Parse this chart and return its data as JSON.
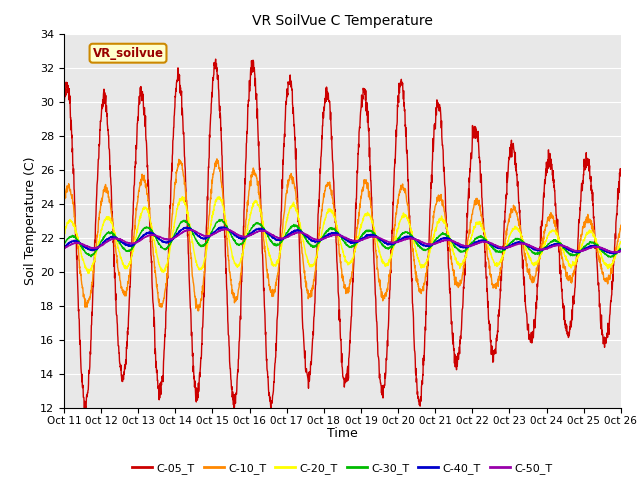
{
  "title": "VR SoilVue C Temperature",
  "xlabel": "Time",
  "ylabel": "Soil Temperature (C)",
  "ylim": [
    12,
    34
  ],
  "yticks": [
    12,
    14,
    16,
    18,
    20,
    22,
    24,
    26,
    28,
    30,
    32,
    34
  ],
  "xtick_labels": [
    "Oct 11",
    "0ct 12",
    "0ct 13",
    "0ct 14",
    "0ct 15",
    "0ct 16",
    "0ct 17",
    "0ct 18",
    "0ct 19",
    "0ct 20",
    "0ct 21",
    "0ct 22",
    "0ct 23",
    "0ct 24",
    "0ct 25",
    "0ct 26"
  ],
  "legend_labels": [
    "C-05_T",
    "C-10_T",
    "C-20_T",
    "C-30_T",
    "C-40_T",
    "C-50_T"
  ],
  "legend_colors": [
    "#cc0000",
    "#ff8800",
    "#ffff00",
    "#00bb00",
    "#0000cc",
    "#9900aa"
  ],
  "line_widths": [
    1.0,
    1.0,
    1.0,
    1.0,
    1.2,
    1.2
  ],
  "watermark_text": "VR_soilvue",
  "fig_bg": "#ffffff",
  "plot_bg": "#e8e8e8",
  "n_days": 15,
  "points_per_day": 144,
  "C05_amplitudes": [
    9.5,
    8.0,
    9.0,
    9.5,
    10.0,
    10.0,
    8.5,
    8.5,
    9.0,
    9.5,
    7.0,
    6.5,
    5.5,
    5.0,
    5.5
  ],
  "C10_amplitudes": [
    3.5,
    3.0,
    4.0,
    4.5,
    4.0,
    3.5,
    3.5,
    3.0,
    3.5,
    3.0,
    2.5,
    2.5,
    2.0,
    1.8,
    1.8
  ],
  "C20_amplitudes": [
    1.5,
    1.5,
    2.0,
    2.2,
    2.0,
    1.8,
    1.8,
    1.5,
    1.5,
    1.5,
    1.3,
    1.2,
    1.0,
    1.0,
    1.0
  ],
  "C30_amplitudes": [
    0.6,
    0.6,
    0.7,
    0.8,
    0.7,
    0.6,
    0.6,
    0.5,
    0.5,
    0.5,
    0.5,
    0.4,
    0.4,
    0.4,
    0.4
  ],
  "C40_amplitudes": [
    0.3,
    0.3,
    0.35,
    0.35,
    0.3,
    0.3,
    0.3,
    0.25,
    0.25,
    0.25,
    0.25,
    0.2,
    0.2,
    0.2,
    0.2
  ],
  "C50_amplitudes": [
    0.2,
    0.2,
    0.2,
    0.2,
    0.2,
    0.2,
    0.2,
    0.15,
    0.15,
    0.15,
    0.15,
    0.15,
    0.15,
    0.15,
    0.15
  ],
  "mean_temps": [
    21.5,
    21.8,
    22.0,
    22.3,
    22.3,
    22.2,
    22.1,
    22.0,
    21.9,
    21.8,
    21.7,
    21.6,
    21.5,
    21.4,
    21.3
  ],
  "C05_phase": 0.58,
  "C10_phase": 0.62,
  "C20_phase": 0.67,
  "C30_phase": 0.72,
  "C40_phase": 0.78,
  "C50_phase": 0.85
}
